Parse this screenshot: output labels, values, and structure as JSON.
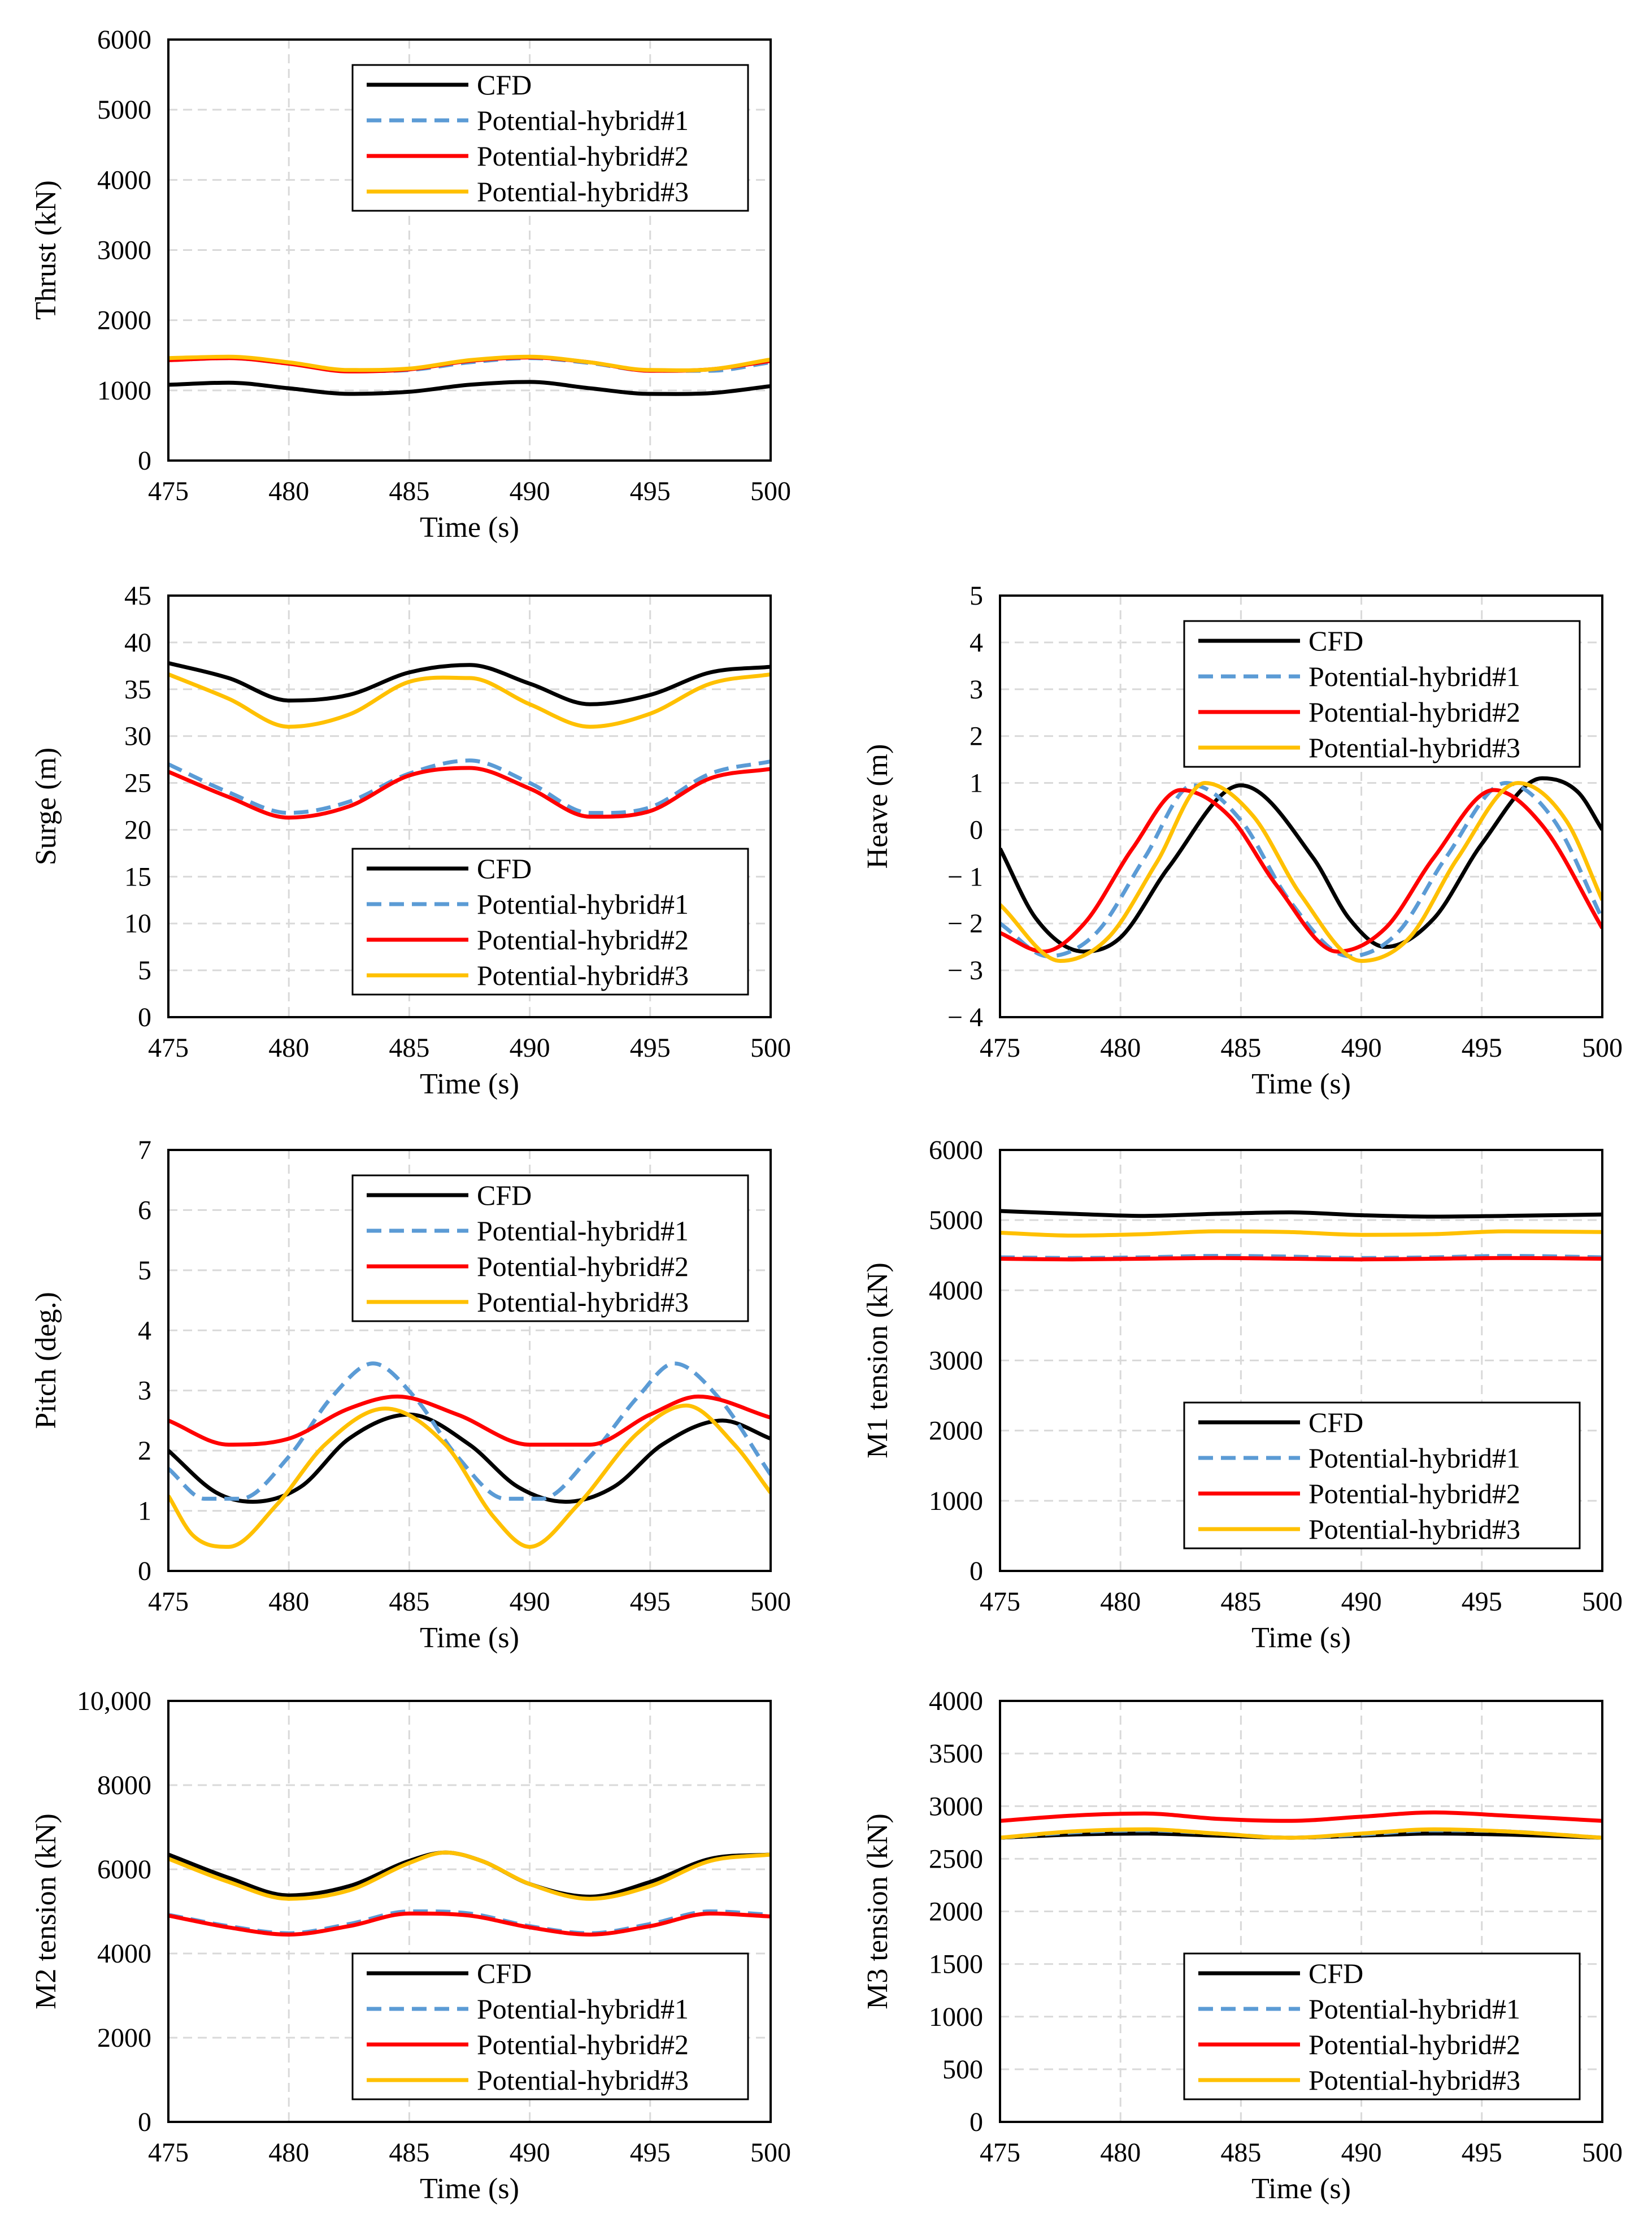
{
  "figure": {
    "legend_entries": [
      "CFD",
      "Potential-hybrid#1",
      "Potential-hybrid#2",
      "Potential-hybrid#3"
    ],
    "series_colors": {
      "CFD": "#000000",
      "Potential-hybrid#1": "#5B9BD5",
      "Potential-hybrid#2": "#FF0000",
      "Potential-hybrid#3": "#FFC000"
    }
  },
  "chart_data": [
    {
      "id": "thrust",
      "type": "line",
      "xlabel": "Time (s)",
      "ylabel": "Thrust (kN)",
      "xlim": [
        475,
        500
      ],
      "ylim": [
        0,
        6000
      ],
      "xticks": [
        475,
        480,
        485,
        490,
        495,
        500
      ],
      "yticks": [
        0,
        1000,
        2000,
        3000,
        4000,
        5000,
        6000
      ],
      "ytick_labels": [
        "0",
        "1000",
        "2000",
        "3000",
        "4000",
        "5000",
        "6000"
      ],
      "legend_position": "top-right",
      "series": [
        {
          "name": "CFD",
          "dash": "solid",
          "x": [
            475,
            477.5,
            480,
            482.5,
            485,
            487.5,
            490,
            492.5,
            495,
            497.5,
            500
          ],
          "y": [
            1080,
            1110,
            1030,
            950,
            980,
            1080,
            1120,
            1030,
            950,
            960,
            1060
          ]
        },
        {
          "name": "Potential-hybrid#1",
          "dash": "dashed",
          "x": [
            475,
            477.5,
            480,
            482.5,
            485,
            487.5,
            490,
            492.5,
            495,
            497.5,
            500
          ],
          "y": [
            1430,
            1460,
            1380,
            1280,
            1290,
            1400,
            1460,
            1390,
            1280,
            1280,
            1400
          ]
        },
        {
          "name": "Potential-hybrid#2",
          "dash": "solid",
          "x": [
            475,
            477.5,
            480,
            482.5,
            485,
            487.5,
            490,
            492.5,
            495,
            497.5,
            500
          ],
          "y": [
            1430,
            1460,
            1380,
            1270,
            1300,
            1420,
            1470,
            1400,
            1280,
            1300,
            1420
          ]
        },
        {
          "name": "Potential-hybrid#3",
          "dash": "solid",
          "x": [
            475,
            477.5,
            480,
            482.5,
            485,
            487.5,
            490,
            492.5,
            495,
            497.5,
            500
          ],
          "y": [
            1460,
            1480,
            1400,
            1290,
            1310,
            1430,
            1480,
            1400,
            1290,
            1300,
            1440
          ]
        }
      ]
    },
    {
      "id": "surge",
      "type": "line",
      "xlabel": "Time (s)",
      "ylabel": "Surge (m)",
      "xlim": [
        475,
        500
      ],
      "ylim": [
        0,
        45
      ],
      "xticks": [
        475,
        480,
        485,
        490,
        495,
        500
      ],
      "yticks": [
        0,
        5,
        10,
        15,
        20,
        25,
        30,
        35,
        40,
        45
      ],
      "ytick_labels": [
        "0",
        "5",
        "10",
        "15",
        "20",
        "25",
        "30",
        "35",
        "40",
        "45"
      ],
      "legend_position": "bottom-right",
      "series": [
        {
          "name": "CFD",
          "dash": "solid",
          "x": [
            475,
            477.5,
            480,
            482.5,
            485,
            487.5,
            490,
            492.5,
            495,
            497.5,
            500
          ],
          "y": [
            37.8,
            36.2,
            33.8,
            34.4,
            36.8,
            37.6,
            35.6,
            33.4,
            34.4,
            36.8,
            37.4
          ]
        },
        {
          "name": "Potential-hybrid#1",
          "dash": "dashed",
          "x": [
            475,
            477.5,
            480,
            482.5,
            485,
            487.5,
            490,
            492.5,
            495,
            497.5,
            500
          ],
          "y": [
            27,
            24,
            21.8,
            23,
            26,
            27.4,
            25,
            21.8,
            22.4,
            26,
            27.3
          ]
        },
        {
          "name": "Potential-hybrid#2",
          "dash": "solid",
          "x": [
            475,
            477.5,
            480,
            482.5,
            485,
            487.5,
            490,
            492.5,
            495,
            497.5,
            500
          ],
          "y": [
            26.2,
            23.5,
            21.3,
            22.5,
            25.8,
            26.6,
            24.4,
            21.4,
            22,
            25.5,
            26.5
          ]
        },
        {
          "name": "Potential-hybrid#3",
          "dash": "solid",
          "x": [
            475,
            477.5,
            480,
            482.5,
            485,
            487.5,
            490,
            492.5,
            495,
            497.5,
            500
          ],
          "y": [
            36.6,
            34,
            31,
            32.3,
            35.8,
            36.2,
            33.4,
            31,
            32.4,
            35.6,
            36.6
          ]
        }
      ]
    },
    {
      "id": "heave",
      "type": "line",
      "xlabel": "Time (s)",
      "ylabel": "Heave (m)",
      "xlim": [
        475,
        500
      ],
      "ylim": [
        -4,
        5
      ],
      "xticks": [
        475,
        480,
        485,
        490,
        495,
        500
      ],
      "yticks": [
        -4,
        -3,
        -2,
        -1,
        0,
        1,
        2,
        3,
        4,
        5
      ],
      "ytick_labels": [
        "− 4",
        "− 3",
        "− 2",
        "− 1",
        "0",
        "1",
        "2",
        "3",
        "4",
        "5"
      ],
      "legend_position": "top-right",
      "series": [
        {
          "name": "CFD",
          "dash": "solid",
          "x": [
            475,
            476.5,
            478.5,
            480,
            482,
            485,
            488,
            489.5,
            491,
            493,
            495,
            497.5,
            499,
            500
          ],
          "y": [
            -0.4,
            -1.9,
            -2.6,
            -2.3,
            -0.8,
            0.95,
            -0.6,
            -1.9,
            -2.5,
            -1.9,
            -0.3,
            1.1,
            0.8,
            0
          ]
        },
        {
          "name": "Potential-hybrid#1",
          "dash": "dashed",
          "x": [
            475,
            477,
            479,
            481,
            483,
            485,
            487,
            489.5,
            491.5,
            493.5,
            496,
            498,
            500
          ],
          "y": [
            -2,
            -2.7,
            -2.2,
            -0.6,
            0.95,
            0.2,
            -1.5,
            -2.7,
            -2.2,
            -0.6,
            1,
            0.2,
            -1.9
          ]
        },
        {
          "name": "Potential-hybrid#2",
          "dash": "solid",
          "x": [
            475,
            476.8,
            478.5,
            480.5,
            482.5,
            484.5,
            486.5,
            489,
            491,
            493,
            495.5,
            497.5,
            500
          ],
          "y": [
            -2.2,
            -2.6,
            -2,
            -0.4,
            0.85,
            0.3,
            -1.2,
            -2.6,
            -2.1,
            -0.6,
            0.85,
            0.1,
            -2.1
          ]
        },
        {
          "name": "Potential-hybrid#3",
          "dash": "solid",
          "x": [
            475,
            477.5,
            479.5,
            481.5,
            483.5,
            485.5,
            487.5,
            490,
            492,
            494,
            496.5,
            498.5,
            500
          ],
          "y": [
            -1.6,
            -2.8,
            -2.3,
            -0.7,
            1,
            0.3,
            -1.4,
            -2.8,
            -2.3,
            -0.6,
            1,
            0.2,
            -1.5
          ]
        }
      ]
    },
    {
      "id": "pitch",
      "type": "line",
      "xlabel": "Time (s)",
      "ylabel": "Pitch (deg.)",
      "xlim": [
        475,
        500
      ],
      "ylim": [
        0,
        7
      ],
      "xticks": [
        475,
        480,
        485,
        490,
        495,
        500
      ],
      "yticks": [
        0,
        1,
        2,
        3,
        4,
        5,
        6,
        7
      ],
      "ytick_labels": [
        "0",
        "1",
        "2",
        "3",
        "4",
        "5",
        "6",
        "7"
      ],
      "legend_position": "top-right",
      "series": [
        {
          "name": "CFD",
          "dash": "solid",
          "x": [
            475,
            477,
            478.5,
            480.5,
            482.5,
            485,
            487.5,
            489.5,
            491.5,
            493.5,
            495.5,
            498,
            500
          ],
          "y": [
            2,
            1.3,
            1.15,
            1.4,
            2.2,
            2.6,
            2.1,
            1.4,
            1.15,
            1.4,
            2.1,
            2.5,
            2.2
          ]
        },
        {
          "name": "Potential-hybrid#1",
          "dash": "dashed",
          "x": [
            475,
            476.5,
            478,
            480,
            481.8,
            483.5,
            485.2,
            487,
            489,
            490.5,
            492.5,
            494.5,
            496,
            497.8,
            500
          ],
          "y": [
            1.7,
            1.2,
            1.2,
            1.9,
            2.9,
            3.45,
            2.9,
            1.9,
            1.2,
            1.2,
            1.9,
            2.9,
            3.45,
            2.9,
            1.6
          ]
        },
        {
          "name": "Potential-hybrid#2",
          "dash": "solid",
          "x": [
            475,
            477.5,
            480,
            482.5,
            484.5,
            487,
            490,
            492.5,
            495,
            497,
            500
          ],
          "y": [
            2.5,
            2.1,
            2.2,
            2.7,
            2.9,
            2.6,
            2.1,
            2.1,
            2.6,
            2.9,
            2.55
          ]
        },
        {
          "name": "Potential-hybrid#3",
          "dash": "solid",
          "x": [
            475,
            476,
            477.5,
            479.5,
            481.5,
            484,
            486.5,
            488.5,
            490,
            492,
            494.5,
            496.5,
            498.5,
            500
          ],
          "y": [
            1.25,
            0.6,
            0.4,
            1.1,
            2.1,
            2.7,
            2.1,
            0.9,
            0.4,
            1.1,
            2.3,
            2.75,
            2.1,
            1.3
          ]
        }
      ]
    },
    {
      "id": "m1",
      "type": "line",
      "xlabel": "Time (s)",
      "ylabel": "M1 tension (kN)",
      "xlim": [
        475,
        500
      ],
      "ylim": [
        0,
        6000
      ],
      "xticks": [
        475,
        480,
        485,
        490,
        495,
        500
      ],
      "yticks": [
        0,
        1000,
        2000,
        3000,
        4000,
        5000,
        6000
      ],
      "ytick_labels": [
        "0",
        "1000",
        "2000",
        "3000",
        "4000",
        "5000",
        "6000"
      ],
      "legend_position": "bottom-right",
      "series": [
        {
          "name": "CFD",
          "dash": "solid",
          "x": [
            475,
            478,
            481,
            484,
            487,
            490,
            493,
            496,
            500
          ],
          "y": [
            5130,
            5090,
            5060,
            5090,
            5110,
            5070,
            5050,
            5060,
            5080
          ]
        },
        {
          "name": "Potential-hybrid#1",
          "dash": "dashed",
          "x": [
            475,
            478,
            481,
            484,
            487,
            490,
            493,
            496,
            500
          ],
          "y": [
            4470,
            4460,
            4470,
            4490,
            4480,
            4460,
            4470,
            4490,
            4470
          ]
        },
        {
          "name": "Potential-hybrid#2",
          "dash": "solid",
          "x": [
            475,
            478,
            481,
            484,
            487,
            490,
            493,
            496,
            500
          ],
          "y": [
            4450,
            4440,
            4450,
            4460,
            4450,
            4440,
            4450,
            4460,
            4450
          ]
        },
        {
          "name": "Potential-hybrid#3",
          "dash": "solid",
          "x": [
            475,
            478,
            481,
            484,
            487,
            490,
            493,
            496,
            500
          ],
          "y": [
            4820,
            4780,
            4800,
            4840,
            4830,
            4790,
            4800,
            4840,
            4830
          ]
        }
      ]
    },
    {
      "id": "m2",
      "type": "line",
      "xlabel": "Time (s)",
      "ylabel": "M2 tension (kN)",
      "xlim": [
        475,
        500
      ],
      "ylim": [
        0,
        10000
      ],
      "xticks": [
        475,
        480,
        485,
        490,
        495,
        500
      ],
      "yticks": [
        0,
        2000,
        4000,
        6000,
        8000,
        10000
      ],
      "ytick_labels": [
        "0",
        "2000",
        "4000",
        "6000",
        "8000",
        "10,000"
      ],
      "legend_position": "bottom-right",
      "series": [
        {
          "name": "CFD",
          "dash": "solid",
          "x": [
            475,
            477.5,
            480,
            482.5,
            485,
            486.5,
            488,
            490,
            492.5,
            495,
            497.5,
            500
          ],
          "y": [
            6350,
            5800,
            5380,
            5600,
            6200,
            6400,
            6200,
            5650,
            5350,
            5700,
            6250,
            6350
          ]
        },
        {
          "name": "Potential-hybrid#1",
          "dash": "dashed",
          "x": [
            475,
            477.5,
            480,
            482.5,
            485,
            487.5,
            490,
            492.5,
            495,
            497.5,
            500
          ],
          "y": [
            4920,
            4650,
            4480,
            4700,
            5000,
            4950,
            4650,
            4480,
            4700,
            5000,
            4920
          ]
        },
        {
          "name": "Potential-hybrid#2",
          "dash": "solid",
          "x": [
            475,
            477.5,
            480,
            482.5,
            485,
            487.5,
            490,
            492.5,
            495,
            497.5,
            500
          ],
          "y": [
            4900,
            4620,
            4450,
            4650,
            4950,
            4900,
            4620,
            4450,
            4650,
            4950,
            4880
          ]
        },
        {
          "name": "Potential-hybrid#3",
          "dash": "solid",
          "x": [
            475,
            477.5,
            480,
            482.5,
            485,
            486.5,
            488,
            490,
            492.5,
            495,
            497.5,
            500
          ],
          "y": [
            6250,
            5700,
            5300,
            5500,
            6150,
            6400,
            6200,
            5650,
            5300,
            5600,
            6200,
            6350
          ]
        }
      ]
    },
    {
      "id": "m3",
      "type": "line",
      "xlabel": "Time (s)",
      "ylabel": "M3 tension (kN)",
      "xlim": [
        475,
        500
      ],
      "ylim": [
        0,
        4000
      ],
      "xticks": [
        475,
        480,
        485,
        490,
        495,
        500
      ],
      "yticks": [
        0,
        500,
        1000,
        1500,
        2000,
        2500,
        3000,
        3500,
        4000
      ],
      "ytick_labels": [
        "0",
        "500",
        "1000",
        "1500",
        "2000",
        "2500",
        "3000",
        "3500",
        "4000"
      ],
      "legend_position": "bottom-right",
      "series": [
        {
          "name": "CFD",
          "dash": "solid",
          "x": [
            475,
            478,
            481,
            484,
            487,
            490,
            493,
            496,
            500
          ],
          "y": [
            2700,
            2730,
            2740,
            2720,
            2700,
            2720,
            2740,
            2730,
            2700
          ]
        },
        {
          "name": "Potential-hybrid#1",
          "dash": "dashed",
          "x": [
            475,
            478,
            481,
            484,
            487,
            490,
            493,
            496,
            500
          ],
          "y": [
            2700,
            2750,
            2770,
            2740,
            2700,
            2730,
            2770,
            2760,
            2700
          ]
        },
        {
          "name": "Potential-hybrid#2",
          "dash": "solid",
          "x": [
            475,
            478,
            481,
            484,
            487,
            490,
            493,
            496,
            500
          ],
          "y": [
            2860,
            2910,
            2930,
            2880,
            2860,
            2900,
            2940,
            2910,
            2860
          ]
        },
        {
          "name": "Potential-hybrid#3",
          "dash": "solid",
          "x": [
            475,
            478,
            481,
            484,
            487,
            490,
            493,
            496,
            500
          ],
          "y": [
            2700,
            2760,
            2780,
            2740,
            2700,
            2740,
            2780,
            2760,
            2700
          ]
        }
      ]
    }
  ]
}
